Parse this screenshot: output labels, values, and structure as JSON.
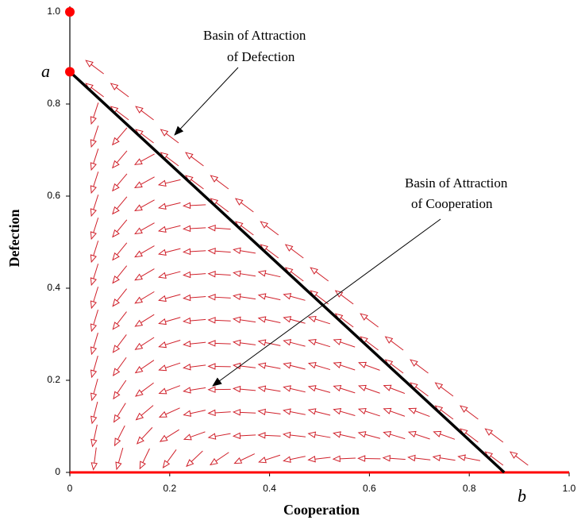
{
  "chart_data": {
    "type": "phase",
    "xlabel": "Cooperation",
    "ylabel": "Defection",
    "xlim": [
      0,
      1
    ],
    "ylim": [
      0,
      1
    ],
    "xticks": [
      0,
      0.2,
      0.4,
      0.6,
      0.8,
      {
        "value": 1,
        "label": "1.0"
      }
    ],
    "yticks": [
      0,
      0.2,
      0.4,
      0.6,
      0.8,
      {
        "value": 1,
        "label": "1.0"
      }
    ],
    "field_color": "#d0202a",
    "separatrix": {
      "x": [
        0,
        0.87
      ],
      "y": [
        0.87,
        0
      ],
      "color": "#000000"
    },
    "stable_line": {
      "x": [
        0,
        1
      ],
      "y": [
        0,
        0
      ],
      "color": "#ff0000"
    },
    "points": {
      "x": [
        0,
        0
      ],
      "y": [
        1,
        0.87
      ],
      "color": "#ff0000"
    },
    "point_labels": [
      "a",
      "b"
    ],
    "annotations": [
      [
        "Basin of Attraction",
        "of Defection"
      ],
      [
        "Basin of Attraction",
        "of Cooperation"
      ]
    ]
  }
}
